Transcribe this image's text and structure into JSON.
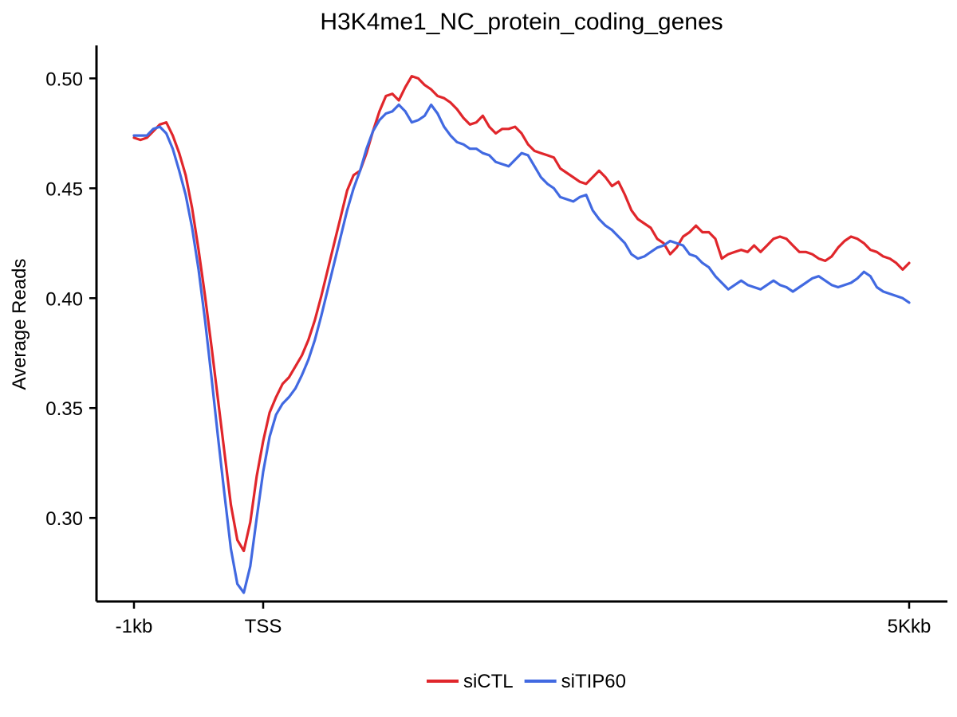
{
  "chart_data": {
    "type": "line",
    "title": "H3K4me1_NC_protein_coding_genes",
    "xlabel": "",
    "ylabel": "Average Reads",
    "xlim": [
      -1000,
      5000
    ],
    "ylim": [
      0.262,
      0.515
    ],
    "x_ticks": [
      {
        "value": -1000,
        "label": "-1kb"
      },
      {
        "value": 0,
        "label": "TSS"
      },
      {
        "value": 5000,
        "label": "5Kkb"
      }
    ],
    "y_ticks": [
      {
        "value": 0.3,
        "label": "0.30"
      },
      {
        "value": 0.35,
        "label": "0.35"
      },
      {
        "value": 0.4,
        "label": "0.40"
      },
      {
        "value": 0.45,
        "label": "0.45"
      },
      {
        "value": 0.5,
        "label": "0.50"
      }
    ],
    "legend_position": "bottom",
    "grid": false,
    "series": [
      {
        "name": "siCTL",
        "color": "#e0262b",
        "points": [
          [
            -1000,
            0.473
          ],
          [
            -950,
            0.472
          ],
          [
            -900,
            0.473
          ],
          [
            -850,
            0.476
          ],
          [
            -800,
            0.479
          ],
          [
            -750,
            0.48
          ],
          [
            -700,
            0.474
          ],
          [
            -650,
            0.466
          ],
          [
            -600,
            0.456
          ],
          [
            -550,
            0.441
          ],
          [
            -500,
            0.422
          ],
          [
            -450,
            0.401
          ],
          [
            -400,
            0.378
          ],
          [
            -350,
            0.354
          ],
          [
            -300,
            0.33
          ],
          [
            -250,
            0.306
          ],
          [
            -200,
            0.29
          ],
          [
            -150,
            0.285
          ],
          [
            -100,
            0.298
          ],
          [
            -50,
            0.319
          ],
          [
            0,
            0.335
          ],
          [
            50,
            0.348
          ],
          [
            100,
            0.355
          ],
          [
            150,
            0.361
          ],
          [
            200,
            0.364
          ],
          [
            250,
            0.369
          ],
          [
            300,
            0.374
          ],
          [
            350,
            0.381
          ],
          [
            400,
            0.39
          ],
          [
            450,
            0.401
          ],
          [
            500,
            0.413
          ],
          [
            550,
            0.425
          ],
          [
            600,
            0.437
          ],
          [
            650,
            0.449
          ],
          [
            700,
            0.456
          ],
          [
            750,
            0.458
          ],
          [
            800,
            0.466
          ],
          [
            850,
            0.476
          ],
          [
            900,
            0.485
          ],
          [
            950,
            0.492
          ],
          [
            1000,
            0.493
          ],
          [
            1050,
            0.49
          ],
          [
            1100,
            0.496
          ],
          [
            1150,
            0.501
          ],
          [
            1200,
            0.5
          ],
          [
            1250,
            0.497
          ],
          [
            1300,
            0.495
          ],
          [
            1350,
            0.492
          ],
          [
            1400,
            0.491
          ],
          [
            1450,
            0.489
          ],
          [
            1500,
            0.486
          ],
          [
            1550,
            0.482
          ],
          [
            1600,
            0.479
          ],
          [
            1650,
            0.48
          ],
          [
            1700,
            0.483
          ],
          [
            1750,
            0.478
          ],
          [
            1800,
            0.475
          ],
          [
            1850,
            0.477
          ],
          [
            1900,
            0.477
          ],
          [
            1950,
            0.478
          ],
          [
            2000,
            0.475
          ],
          [
            2050,
            0.47
          ],
          [
            2100,
            0.467
          ],
          [
            2150,
            0.466
          ],
          [
            2200,
            0.465
          ],
          [
            2250,
            0.464
          ],
          [
            2300,
            0.459
          ],
          [
            2350,
            0.457
          ],
          [
            2400,
            0.455
          ],
          [
            2450,
            0.453
          ],
          [
            2500,
            0.452
          ],
          [
            2550,
            0.455
          ],
          [
            2600,
            0.458
          ],
          [
            2650,
            0.455
          ],
          [
            2700,
            0.451
          ],
          [
            2750,
            0.453
          ],
          [
            2800,
            0.447
          ],
          [
            2850,
            0.44
          ],
          [
            2900,
            0.436
          ],
          [
            2950,
            0.434
          ],
          [
            3000,
            0.432
          ],
          [
            3050,
            0.427
          ],
          [
            3100,
            0.425
          ],
          [
            3150,
            0.42
          ],
          [
            3200,
            0.423
          ],
          [
            3250,
            0.428
          ],
          [
            3300,
            0.43
          ],
          [
            3350,
            0.433
          ],
          [
            3400,
            0.43
          ],
          [
            3450,
            0.43
          ],
          [
            3500,
            0.427
          ],
          [
            3550,
            0.418
          ],
          [
            3600,
            0.42
          ],
          [
            3650,
            0.421
          ],
          [
            3700,
            0.422
          ],
          [
            3750,
            0.421
          ],
          [
            3800,
            0.424
          ],
          [
            3850,
            0.421
          ],
          [
            3900,
            0.424
          ],
          [
            3950,
            0.427
          ],
          [
            4000,
            0.428
          ],
          [
            4050,
            0.427
          ],
          [
            4100,
            0.424
          ],
          [
            4150,
            0.421
          ],
          [
            4200,
            0.421
          ],
          [
            4250,
            0.42
          ],
          [
            4300,
            0.418
          ],
          [
            4350,
            0.417
          ],
          [
            4400,
            0.419
          ],
          [
            4450,
            0.423
          ],
          [
            4500,
            0.426
          ],
          [
            4550,
            0.428
          ],
          [
            4600,
            0.427
          ],
          [
            4650,
            0.425
          ],
          [
            4700,
            0.422
          ],
          [
            4750,
            0.421
          ],
          [
            4800,
            0.419
          ],
          [
            4850,
            0.418
          ],
          [
            4900,
            0.416
          ],
          [
            4950,
            0.413
          ],
          [
            5000,
            0.416
          ]
        ]
      },
      {
        "name": "siTIP60",
        "color": "#4169e1",
        "points": [
          [
            -1000,
            0.474
          ],
          [
            -950,
            0.474
          ],
          [
            -900,
            0.474
          ],
          [
            -850,
            0.477
          ],
          [
            -800,
            0.478
          ],
          [
            -750,
            0.475
          ],
          [
            -700,
            0.468
          ],
          [
            -650,
            0.458
          ],
          [
            -600,
            0.447
          ],
          [
            -550,
            0.432
          ],
          [
            -500,
            0.413
          ],
          [
            -450,
            0.39
          ],
          [
            -400,
            0.364
          ],
          [
            -350,
            0.337
          ],
          [
            -300,
            0.311
          ],
          [
            -250,
            0.286
          ],
          [
            -200,
            0.27
          ],
          [
            -150,
            0.266
          ],
          [
            -100,
            0.278
          ],
          [
            -50,
            0.3
          ],
          [
            0,
            0.321
          ],
          [
            50,
            0.337
          ],
          [
            100,
            0.347
          ],
          [
            150,
            0.352
          ],
          [
            200,
            0.355
          ],
          [
            250,
            0.359
          ],
          [
            300,
            0.365
          ],
          [
            350,
            0.372
          ],
          [
            400,
            0.381
          ],
          [
            450,
            0.392
          ],
          [
            500,
            0.404
          ],
          [
            550,
            0.416
          ],
          [
            600,
            0.428
          ],
          [
            650,
            0.44
          ],
          [
            700,
            0.45
          ],
          [
            750,
            0.458
          ],
          [
            800,
            0.468
          ],
          [
            850,
            0.476
          ],
          [
            900,
            0.481
          ],
          [
            950,
            0.484
          ],
          [
            1000,
            0.485
          ],
          [
            1050,
            0.488
          ],
          [
            1100,
            0.485
          ],
          [
            1150,
            0.48
          ],
          [
            1200,
            0.481
          ],
          [
            1250,
            0.483
          ],
          [
            1300,
            0.488
          ],
          [
            1350,
            0.484
          ],
          [
            1400,
            0.478
          ],
          [
            1450,
            0.474
          ],
          [
            1500,
            0.471
          ],
          [
            1550,
            0.47
          ],
          [
            1600,
            0.468
          ],
          [
            1650,
            0.468
          ],
          [
            1700,
            0.466
          ],
          [
            1750,
            0.465
          ],
          [
            1800,
            0.462
          ],
          [
            1850,
            0.461
          ],
          [
            1900,
            0.46
          ],
          [
            1950,
            0.463
          ],
          [
            2000,
            0.466
          ],
          [
            2050,
            0.465
          ],
          [
            2100,
            0.46
          ],
          [
            2150,
            0.455
          ],
          [
            2200,
            0.452
          ],
          [
            2250,
            0.45
          ],
          [
            2300,
            0.446
          ],
          [
            2350,
            0.445
          ],
          [
            2400,
            0.444
          ],
          [
            2450,
            0.446
          ],
          [
            2500,
            0.447
          ],
          [
            2550,
            0.44
          ],
          [
            2600,
            0.436
          ],
          [
            2650,
            0.433
          ],
          [
            2700,
            0.431
          ],
          [
            2750,
            0.428
          ],
          [
            2800,
            0.425
          ],
          [
            2850,
            0.42
          ],
          [
            2900,
            0.418
          ],
          [
            2950,
            0.419
          ],
          [
            3000,
            0.421
          ],
          [
            3050,
            0.423
          ],
          [
            3100,
            0.424
          ],
          [
            3150,
            0.426
          ],
          [
            3200,
            0.425
          ],
          [
            3250,
            0.424
          ],
          [
            3300,
            0.42
          ],
          [
            3350,
            0.419
          ],
          [
            3400,
            0.416
          ],
          [
            3450,
            0.414
          ],
          [
            3500,
            0.41
          ],
          [
            3550,
            0.407
          ],
          [
            3600,
            0.404
          ],
          [
            3650,
            0.406
          ],
          [
            3700,
            0.408
          ],
          [
            3750,
            0.406
          ],
          [
            3800,
            0.405
          ],
          [
            3850,
            0.404
          ],
          [
            3900,
            0.406
          ],
          [
            3950,
            0.408
          ],
          [
            4000,
            0.406
          ],
          [
            4050,
            0.405
          ],
          [
            4100,
            0.403
          ],
          [
            4150,
            0.405
          ],
          [
            4200,
            0.407
          ],
          [
            4250,
            0.409
          ],
          [
            4300,
            0.41
          ],
          [
            4350,
            0.408
          ],
          [
            4400,
            0.406
          ],
          [
            4450,
            0.405
          ],
          [
            4500,
            0.406
          ],
          [
            4550,
            0.407
          ],
          [
            4600,
            0.409
          ],
          [
            4650,
            0.412
          ],
          [
            4700,
            0.41
          ],
          [
            4750,
            0.405
          ],
          [
            4800,
            0.403
          ],
          [
            4850,
            0.402
          ],
          [
            4900,
            0.401
          ],
          [
            4950,
            0.4
          ],
          [
            5000,
            0.398
          ]
        ]
      }
    ]
  }
}
